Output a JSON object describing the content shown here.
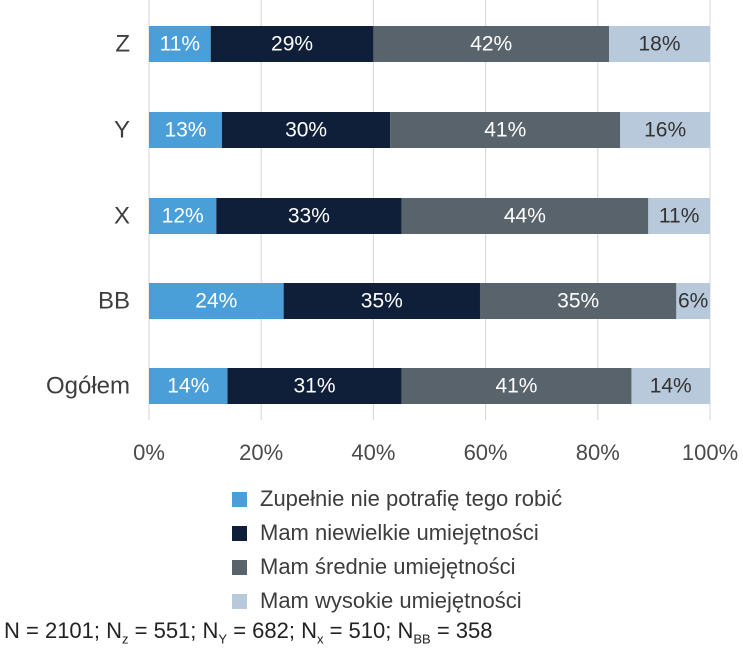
{
  "chart_data": {
    "type": "bar",
    "orientation": "horizontal",
    "stacked": true,
    "categories": [
      "Z",
      "Y",
      "X",
      "BB",
      "Ogółem"
    ],
    "series": [
      {
        "name": "Zupełnie nie potrafię tego robić",
        "color": "#4a9fd8",
        "label_color": "#ffffff",
        "values": [
          11,
          13,
          12,
          24,
          14
        ]
      },
      {
        "name": "Mam niewielkie umiejętności",
        "color": "#0f1f3a",
        "label_color": "#ffffff",
        "values": [
          29,
          30,
          33,
          35,
          31
        ]
      },
      {
        "name": "Mam średnie umiejętności",
        "color": "#59636b",
        "label_color": "#ffffff",
        "values": [
          42,
          41,
          44,
          35,
          41
        ]
      },
      {
        "name": "Mam wysokie umiejętności",
        "color": "#b9c9dc",
        "label_color": "#333333",
        "values": [
          18,
          16,
          11,
          6,
          14
        ]
      }
    ],
    "value_labels": [
      [
        "11%",
        "13%",
        "12%",
        "24%",
        "14%"
      ],
      [
        "29%",
        "30%",
        "33%",
        "35%",
        "31%"
      ],
      [
        "42%",
        "41%",
        "44%",
        "35%",
        "41%"
      ],
      [
        "18%",
        "16%",
        "11%",
        "6%",
        "14%"
      ]
    ],
    "xlim": [
      0,
      100
    ],
    "xticks": [
      "0%",
      "20%",
      "40%",
      "60%",
      "80%",
      "100%"
    ],
    "grid": true,
    "legend_position": "bottom"
  },
  "footnote": {
    "p1": "N = 2101; N",
    "s1": "z",
    "p2": " = 551; N",
    "s2": "Y",
    "p3": " = 682; N",
    "s3": "x",
    "p4": " = 510; N",
    "s4": "BB",
    "p5": " = 358"
  }
}
